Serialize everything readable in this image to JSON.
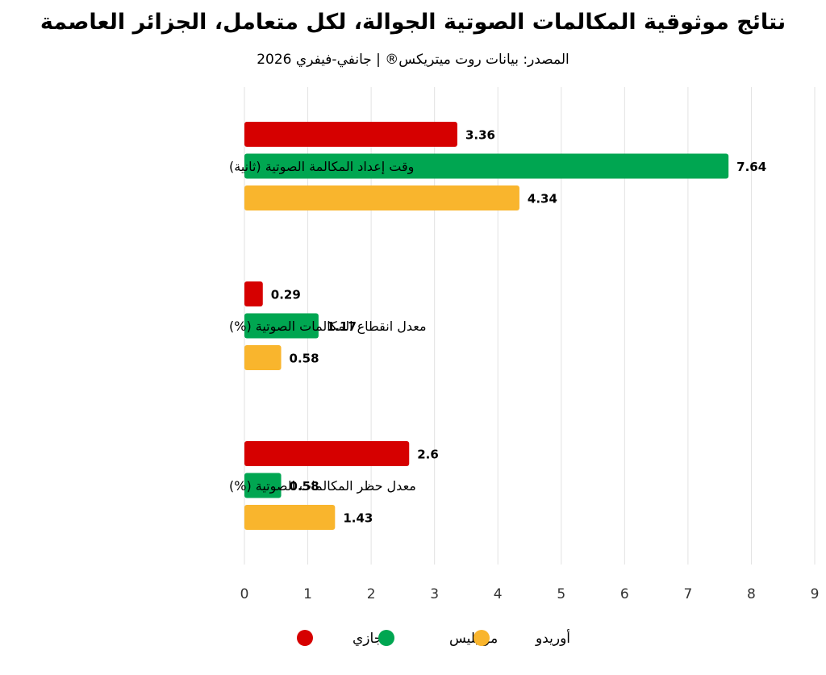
{
  "chart_data": {
    "type": "bar",
    "orientation": "horizontal",
    "title": "نتائج موثوقية المكالمات الصوتية الجوالة، لكل متعامل، الجزائر العاصمة",
    "subtitle": "المصدر: بيانات روت ميتريكس® | جانفي-فيفري 2026",
    "categories": [
      "وقت إعداد المكالمة الصوتية (ثانية)",
      "معدل انقطاع المكالمات الصوتية (%)",
      "معدل حظر المكالمات الصوتية (%)"
    ],
    "series": [
      {
        "name": "جازي",
        "color": "#D60000",
        "values": [
          3.36,
          0.29,
          2.6
        ]
      },
      {
        "name": "موبيليس",
        "color": "#00A651",
        "values": [
          7.64,
          1.17,
          0.58
        ]
      },
      {
        "name": "أوريدو",
        "color": "#F9B52D",
        "values": [
          4.34,
          0.58,
          1.43
        ]
      }
    ],
    "xlim": [
      0,
      9
    ],
    "xticks": [
      0,
      1,
      2,
      3,
      4,
      5,
      6,
      7,
      8,
      9
    ],
    "grid": "vertical",
    "legend_position": "bottom"
  }
}
